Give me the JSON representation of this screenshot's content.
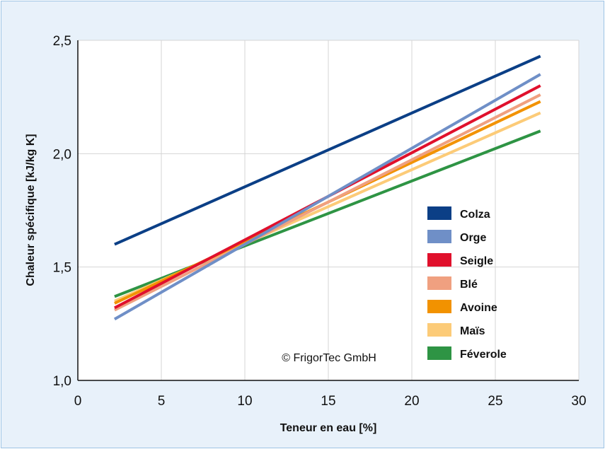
{
  "chart_data": {
    "type": "line",
    "xlabel": "Teneur en eau [%]",
    "ylabel": "Chaleur spécifique [kJ/kg K]",
    "xlim": [
      0,
      30
    ],
    "ylim": [
      1.0,
      2.5
    ],
    "x_ticks": [
      0,
      5,
      10,
      15,
      20,
      25,
      30
    ],
    "x_tick_labels": [
      "0",
      "5",
      "10",
      "15",
      "20",
      "25",
      "30"
    ],
    "y_ticks": [
      1.0,
      1.5,
      2.0,
      2.5
    ],
    "y_tick_labels": [
      "1,0",
      "1,5",
      "2,0",
      "2,5"
    ],
    "grid": true,
    "legend_position": "right",
    "annotation": "© FrigorTec GmbH",
    "series": [
      {
        "name": "Colza",
        "color": "#0b3f86",
        "x": [
          2.2,
          27.7
        ],
        "y": [
          1.6,
          2.43
        ]
      },
      {
        "name": "Orge",
        "color": "#6f8fc7",
        "x": [
          2.2,
          27.7
        ],
        "y": [
          1.27,
          2.35
        ]
      },
      {
        "name": "Seigle",
        "color": "#e0102c",
        "x": [
          2.2,
          27.7
        ],
        "y": [
          1.32,
          2.3
        ]
      },
      {
        "name": "Blé",
        "color": "#f0a080",
        "x": [
          2.2,
          27.7
        ],
        "y": [
          1.31,
          2.26
        ]
      },
      {
        "name": "Avoine",
        "color": "#f29200",
        "x": [
          2.2,
          27.7
        ],
        "y": [
          1.34,
          2.23
        ]
      },
      {
        "name": "Maïs",
        "color": "#fccb78",
        "x": [
          2.2,
          27.7
        ],
        "y": [
          1.35,
          2.18
        ]
      },
      {
        "name": "Féverole",
        "color": "#2e9444",
        "x": [
          2.2,
          27.7
        ],
        "y": [
          1.37,
          2.1
        ]
      }
    ]
  }
}
